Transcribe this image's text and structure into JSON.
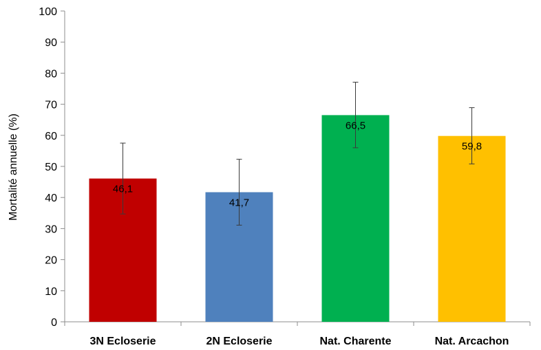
{
  "chart_data": {
    "type": "bar",
    "title": "",
    "xlabel": "",
    "ylabel": "Mortalité annuelle (%)",
    "ylim": [
      0,
      100
    ],
    "yticks": [
      0,
      10,
      20,
      30,
      40,
      50,
      60,
      70,
      80,
      90,
      100
    ],
    "categories": [
      "3N Ecloserie",
      "2N Ecloserie",
      "Nat. Charente",
      "Nat. Arcachon"
    ],
    "values": [
      46.1,
      41.7,
      66.5,
      59.8
    ],
    "value_labels": [
      "46,1",
      "41,7",
      "66,5",
      "59,8"
    ],
    "error_low": [
      34.7,
      31.1,
      56.0,
      50.8
    ],
    "error_high": [
      57.5,
      52.3,
      77.1,
      68.9
    ],
    "colors": [
      "#c00000",
      "#4f81bd",
      "#00b050",
      "#ffc000"
    ],
    "grid": false,
    "legend": "none"
  }
}
